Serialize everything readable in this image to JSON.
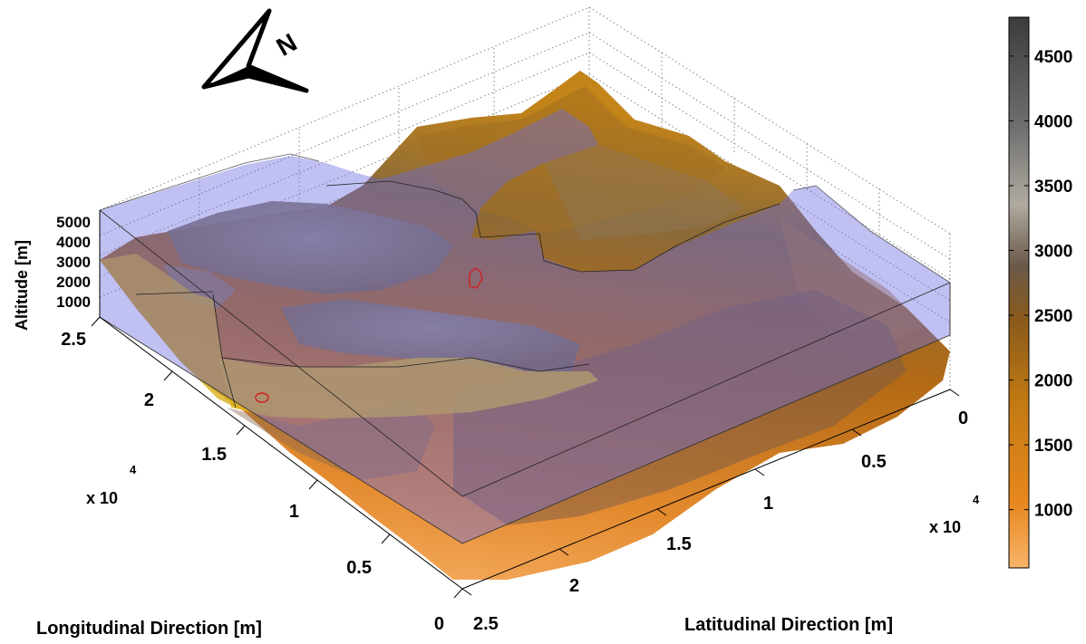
{
  "chart_data": {
    "type": "surface",
    "title": "",
    "xlabel": "Longitudinal Direction [m]",
    "ylabel": "Latitudinal Direction [m]",
    "zlabel": "Altitude [m]",
    "x_multiplier": "x 10",
    "x_multiplier_exp": "4",
    "y_multiplier": "x 10",
    "y_multiplier_exp": "4",
    "x_ticks": [
      "0",
      "0.5",
      "1",
      "1.5",
      "2",
      "2.5"
    ],
    "y_ticks": [
      "0",
      "0.5",
      "1",
      "1.5",
      "2",
      "2.5"
    ],
    "z_ticks": [
      "1000",
      "2000",
      "3000",
      "4000",
      "5000"
    ],
    "xlim": [
      0,
      25000
    ],
    "ylim": [
      0,
      25000
    ],
    "zlim": [
      0,
      5000
    ],
    "colorbar": {
      "range": [
        550,
        4800
      ],
      "ticks": [
        "1000",
        "1500",
        "2000",
        "2500",
        "3000",
        "3500",
        "4000",
        "4500"
      ],
      "tick_values": [
        1000,
        1500,
        2000,
        2500,
        3000,
        3500,
        4000,
        4500
      ],
      "colors": [
        "#f7b46a",
        "#e7871e",
        "#c27a12",
        "#8a5a1a",
        "#6a5a4a",
        "#b0aaa0",
        "#6f6f6f",
        "#3c3c3c"
      ]
    },
    "north_arrow": "N",
    "overlay": {
      "name": "",
      "color": "#6a6ae0"
    },
    "grid": true
  }
}
